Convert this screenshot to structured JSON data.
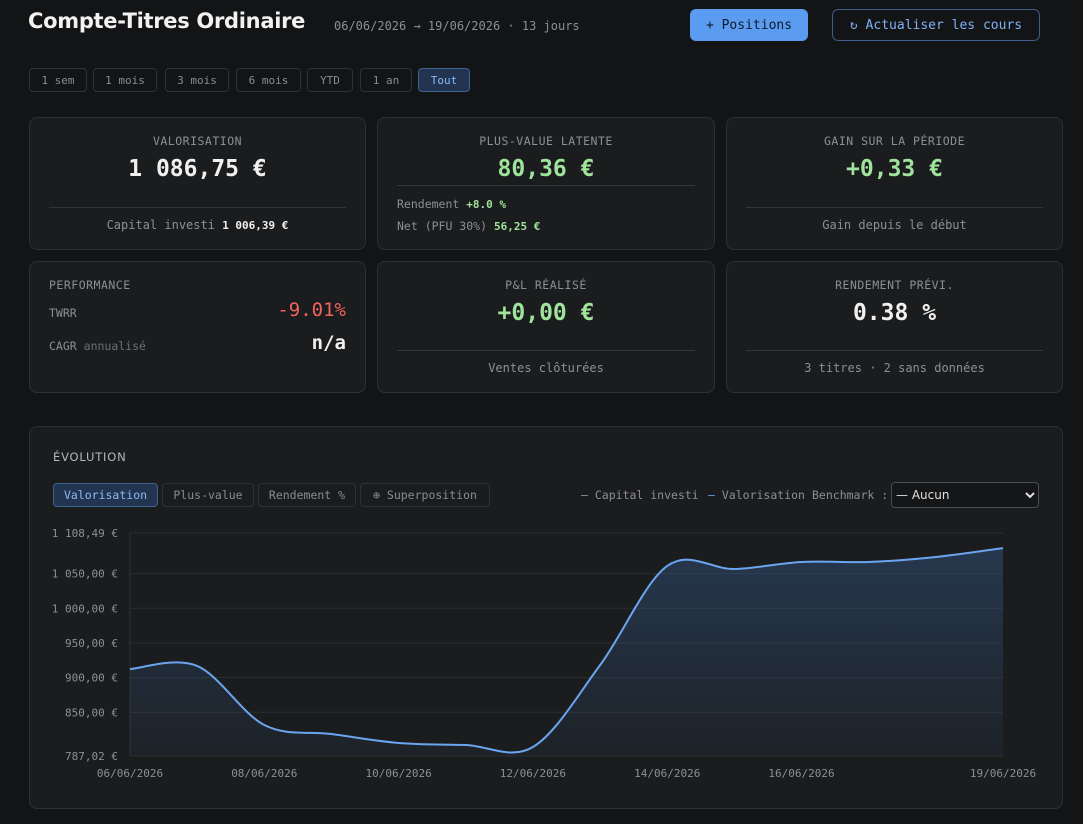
{
  "header": {
    "title": "Compte-Titres Ordinaire",
    "period": "06/06/2026 → 19/06/2026 · 13 jours",
    "buttons": [
      "+ Positions",
      "↻ Actualiser les cours"
    ]
  },
  "ranges": {
    "options": [
      "1 sem",
      "1 mois",
      "3 mois",
      "6 mois",
      "YTD",
      "1 an",
      "Tout"
    ],
    "active": 6
  },
  "cards": [
    {
      "title": "VALORISATION",
      "value": "1 086,75 €",
      "footer_label": "Capital investi",
      "footer_value": "1 006,39 €"
    },
    {
      "title": "PLUS-VALUE LATENTE",
      "value": "80,36 €",
      "rows": [
        {
          "label": "Rendement",
          "value": "+8.0 %"
        },
        {
          "label": "Net (PFU 30%)",
          "value": "56,25 €"
        }
      ]
    },
    {
      "title": "GAIN SUR LA PÉRIODE",
      "value": "+0,33 €",
      "footer": "Gain depuis le début"
    },
    {
      "title": "PERFORMANCE",
      "rows": [
        {
          "label": "TWRR",
          "value": "-9.01%"
        },
        {
          "label": "CAGR",
          "note": "annualisé",
          "value": "n/a"
        }
      ]
    },
    {
      "title": "P&L RÉALISÉ",
      "value": "+0,00 €",
      "footer": "Ventes clôturées"
    },
    {
      "title": "RENDEMENT PRÉVI.",
      "value": "0.38 %",
      "footer": "3 titres · 2 sans données"
    }
  ],
  "evolution": {
    "title": "ÉVOLUTION",
    "tabs": [
      "Valorisation",
      "Plus-value",
      "Rendement %",
      "⊕ Superposition"
    ],
    "active_tab": 0,
    "legend_other": "Capital investi",
    "benchmark_label": "Benchmark :",
    "benchmark_options": [
      "— Aucun"
    ]
  },
  "chart_data": {
    "type": "line",
    "x": [
      "06/06/2026",
      null,
      "08/06/2026",
      null,
      "10/06/2026",
      null,
      "12/06/2026",
      null,
      "14/06/2026",
      null,
      "16/06/2026",
      null,
      null,
      "19/06/2026"
    ],
    "series": [
      {
        "name": "Valorisation",
        "color": "#6aa5f0",
        "values": [
          912.4,
          916.8,
          831.7,
          818.7,
          805.8,
          802.9,
          800.0,
          918.0,
          1061.0,
          1056.6,
          1066.7,
          1066.7,
          1073.9,
          1086.75
        ]
      }
    ],
    "ylim": [
      787.02,
      1108.49
    ],
    "yticks": [
      {
        "value": 787.02,
        "label": "787,02 €"
      },
      {
        "value": 850,
        "label": "850,00 €"
      },
      {
        "value": 900,
        "label": "900,00 €"
      },
      {
        "value": 950,
        "label": "950,00 €"
      },
      {
        "value": 1000,
        "label": "1 000,00 €"
      },
      {
        "value": 1050,
        "label": "1 050,00 €"
      },
      {
        "value": 1108.49,
        "label": "1 108,49 €"
      }
    ],
    "grid": true
  }
}
